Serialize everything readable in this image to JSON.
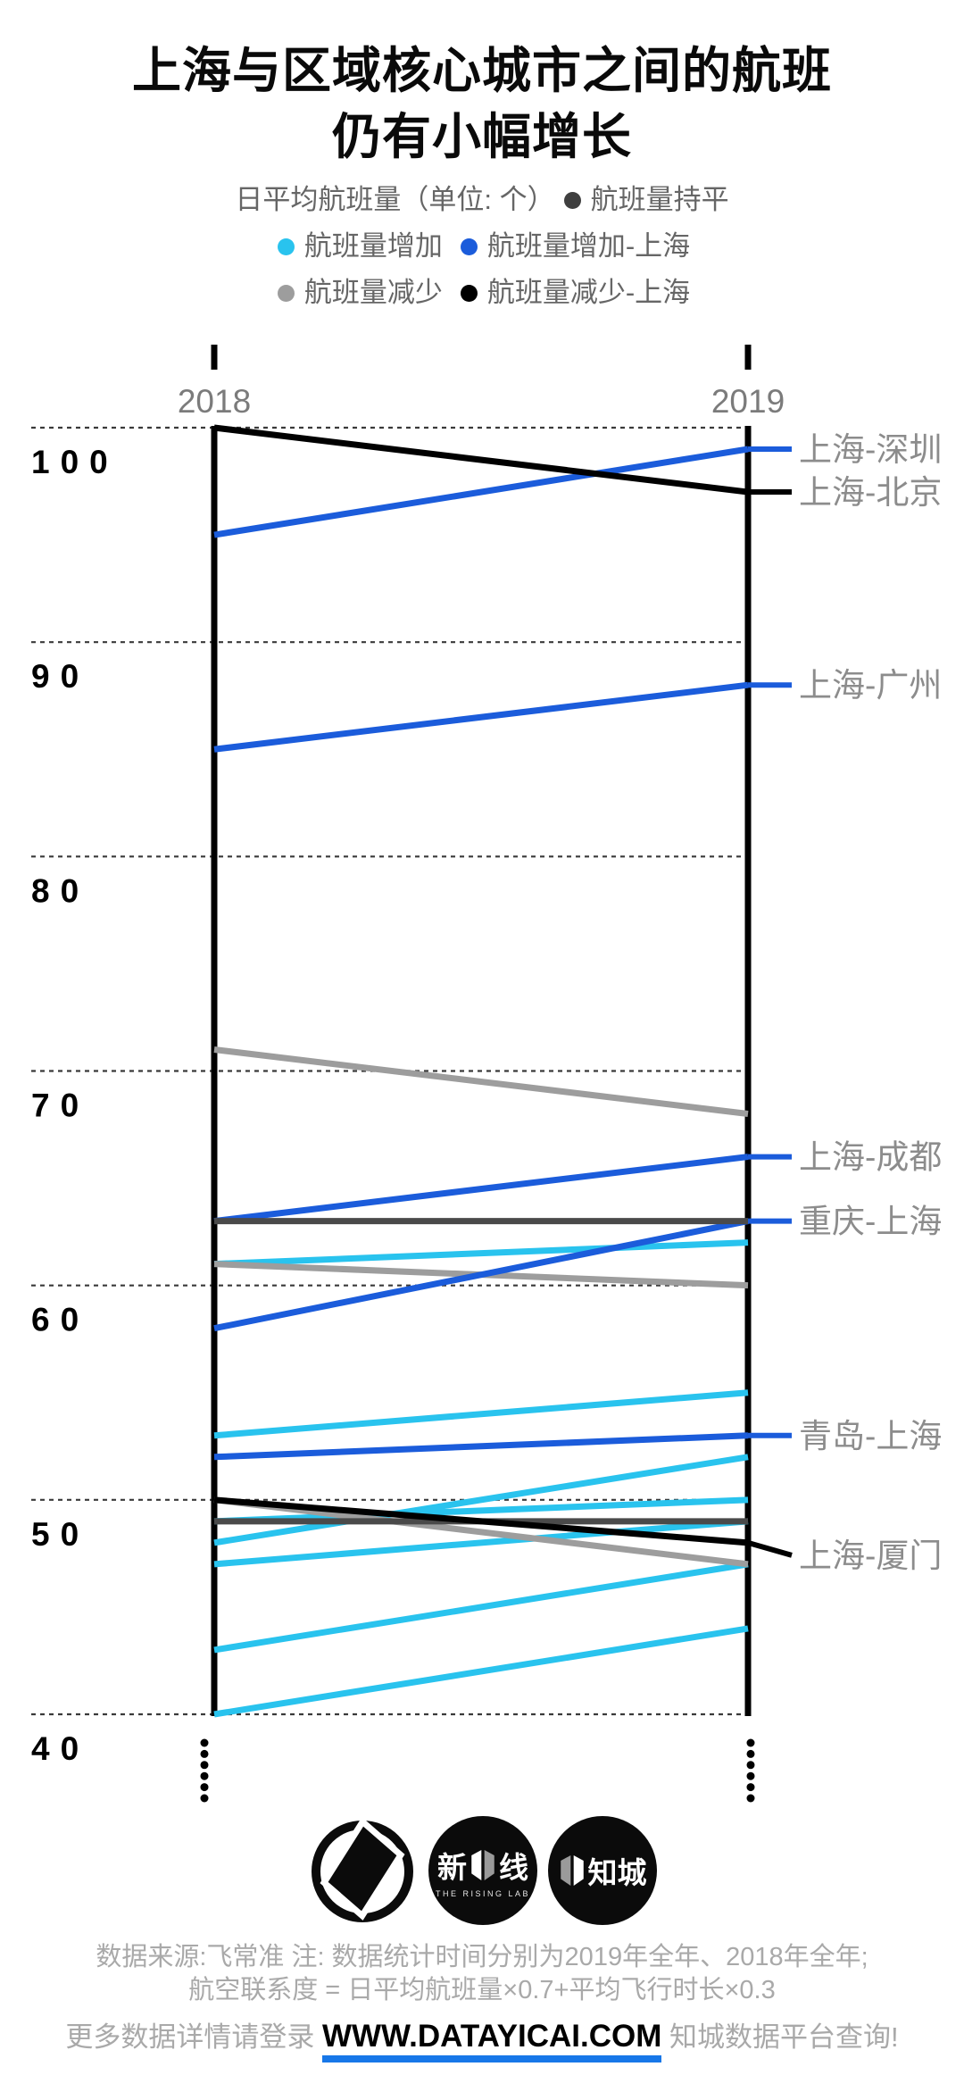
{
  "title": {
    "line1": "上海与区域核心城市之间的航班",
    "line2": "仍有小幅增长"
  },
  "legend": {
    "unit_label": "日平均航班量（单位: 个）",
    "items": [
      {
        "label": "航班量持平",
        "color": "#3f3f3f"
      },
      {
        "label": "航班量增加",
        "color": "#29c3ee"
      },
      {
        "label": "航班量增加-上海",
        "color": "#1b5cdb"
      },
      {
        "label": "航班量减少",
        "color": "#9d9d9d"
      },
      {
        "label": "航班量减少-上海",
        "color": "#000000"
      }
    ]
  },
  "chart_data": {
    "type": "line",
    "subtype": "slopegraph",
    "x": [
      "2018",
      "2019"
    ],
    "yticks": [
      100,
      90,
      80,
      70,
      60,
      50,
      40
    ],
    "ylim": [
      40,
      102
    ],
    "grid": "dashed-horizontal",
    "colors": {
      "increase": "#29c3ee",
      "increase_shanghai": "#1b5cdb",
      "decrease": "#9d9d9d",
      "decrease_shanghai": "#000000",
      "flat": "#4a4a4a"
    },
    "series": [
      {
        "name": "",
        "trend": "increase",
        "values": [
          61,
          62
        ],
        "labeled": false
      },
      {
        "name": "",
        "trend": "increase",
        "values": [
          53,
          55
        ],
        "labeled": false
      },
      {
        "name": "",
        "trend": "increase",
        "values": [
          49,
          50
        ],
        "labeled": false
      },
      {
        "name": "",
        "trend": "increase",
        "values": [
          48,
          52
        ],
        "labeled": false
      },
      {
        "name": "",
        "trend": "increase",
        "values": [
          47,
          49
        ],
        "labeled": false
      },
      {
        "name": "",
        "trend": "increase",
        "values": [
          43,
          47
        ],
        "labeled": false
      },
      {
        "name": "",
        "trend": "increase",
        "values": [
          40,
          44
        ],
        "labeled": false
      },
      {
        "name": "",
        "trend": "decrease",
        "values": [
          71,
          68
        ],
        "labeled": false
      },
      {
        "name": "",
        "trend": "decrease",
        "values": [
          61,
          60
        ],
        "labeled": false
      },
      {
        "name": "",
        "trend": "decrease",
        "values": [
          50,
          47
        ],
        "labeled": false
      },
      {
        "name": "上海-深圳",
        "trend": "increase_shanghai",
        "values": [
          95,
          99
        ],
        "labeled": true
      },
      {
        "name": "上海-广州",
        "trend": "increase_shanghai",
        "values": [
          85,
          88
        ],
        "labeled": true
      },
      {
        "name": "上海-成都",
        "trend": "increase_shanghai",
        "values": [
          63,
          66
        ],
        "labeled": true
      },
      {
        "name": "重庆-上海",
        "trend": "increase_shanghai",
        "values": [
          58,
          63
        ],
        "labeled": true
      },
      {
        "name": "青岛-上海",
        "trend": "increase_shanghai",
        "values": [
          52,
          53
        ],
        "labeled": true
      },
      {
        "name": "",
        "trend": "flat",
        "values": [
          63,
          63
        ],
        "labeled": false
      },
      {
        "name": "",
        "trend": "flat",
        "values": [
          49,
          49
        ],
        "labeled": false
      },
      {
        "name": "上海-北京",
        "trend": "decrease_shanghai",
        "values": [
          100,
          97
        ],
        "labeled": true
      },
      {
        "name": "上海-厦门",
        "trend": "decrease_shanghai",
        "values": [
          50,
          48
        ],
        "labeled": true,
        "label_dy": 14
      }
    ]
  },
  "logos": {
    "rising_lab": {
      "left_char": "新",
      "right_char": "线",
      "subtitle": "THE RISING LAB"
    },
    "zhicheng": {
      "label": "知城"
    }
  },
  "footer": {
    "source_note": "数据来源:飞常准  注: 数据统计时间分别为2019年全年、2018年全年;",
    "formula_note": "航空联系度 = 日平均航班量×0.7+平均飞行时长×0.3",
    "cta_prefix": "更多数据详情请登录 ",
    "cta_link": "WWW.DATAYICAI.COM",
    "cta_suffix": " 知城数据平台查询!"
  }
}
